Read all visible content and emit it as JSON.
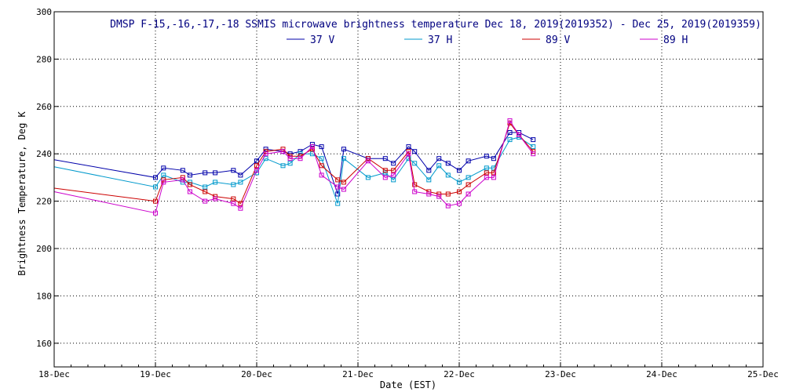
{
  "chart_data": {
    "type": "line",
    "title": "DMSP F-15,-16,-17,-18 SSMIS microwave brightness temperature Dec 18, 2019(2019352) - Dec 25, 2019(2019359)",
    "xlabel": "Date (EST)",
    "ylabel": "Brightness Temperature, Deg K",
    "xlim": [
      0,
      7
    ],
    "ylim": [
      150,
      300
    ],
    "yticks": [
      160,
      180,
      200,
      220,
      240,
      260,
      280,
      300
    ],
    "xticks": [
      {
        "value": 0,
        "label": "18-Dec"
      },
      {
        "value": 1,
        "label": "19-Dec"
      },
      {
        "value": 2,
        "label": "20-Dec"
      },
      {
        "value": 3,
        "label": "21-Dec"
      },
      {
        "value": 4,
        "label": "22-Dec"
      },
      {
        "value": 5,
        "label": "23-Dec"
      },
      {
        "value": 6,
        "label": "24-Dec"
      },
      {
        "value": 7,
        "label": "25-Dec"
      }
    ],
    "grid": true,
    "legend_position": "top-center",
    "series": [
      {
        "name": "37 V",
        "color": "#0000aa",
        "x": [
          0.0,
          1.0,
          1.08,
          1.27,
          1.34,
          1.49,
          1.59,
          1.77,
          1.84,
          2.0,
          2.09,
          2.26,
          2.33,
          2.43,
          2.55,
          2.64,
          2.8,
          2.86,
          3.1,
          3.27,
          3.35,
          3.5,
          3.56,
          3.7,
          3.8,
          3.89,
          4.0,
          4.09,
          4.27,
          4.34,
          4.5,
          4.59,
          4.73
        ],
        "y": [
          237.5,
          230,
          234,
          233,
          231,
          232,
          232,
          233,
          231,
          237,
          242,
          241,
          240,
          241,
          244,
          243,
          223,
          242,
          238,
          238,
          236,
          243,
          241,
          233,
          238,
          236,
          233,
          237,
          239,
          238,
          249,
          249,
          246
        ]
      },
      {
        "name": "37 H",
        "color": "#0099cc",
        "x": [
          0.0,
          1.0,
          1.08,
          1.27,
          1.34,
          1.49,
          1.59,
          1.77,
          1.84,
          2.0,
          2.09,
          2.26,
          2.33,
          2.43,
          2.55,
          2.64,
          2.8,
          2.86,
          3.1,
          3.27,
          3.35,
          3.5,
          3.56,
          3.7,
          3.8,
          3.89,
          4.0,
          4.09,
          4.27,
          4.34,
          4.5,
          4.59,
          4.73
        ],
        "y": [
          234.5,
          226,
          231,
          228,
          228,
          226,
          228,
          227,
          228,
          232,
          238,
          235,
          236,
          240,
          240,
          238,
          219,
          238,
          230,
          232,
          229,
          238,
          236,
          229,
          235,
          231,
          228,
          230,
          234,
          234,
          246,
          247,
          243
        ]
      },
      {
        "name": "89 V",
        "color": "#cc0000",
        "x": [
          0.0,
          1.0,
          1.08,
          1.27,
          1.34,
          1.49,
          1.59,
          1.77,
          1.84,
          2.0,
          2.09,
          2.26,
          2.33,
          2.43,
          2.55,
          2.64,
          2.8,
          2.86,
          3.1,
          3.27,
          3.35,
          3.5,
          3.56,
          3.7,
          3.8,
          3.89,
          4.0,
          4.09,
          4.27,
          4.34,
          4.5,
          4.59,
          4.73
        ],
        "y": [
          225.5,
          220,
          229,
          230,
          227,
          224,
          222,
          221,
          219,
          235,
          241,
          242,
          239,
          239,
          242,
          235,
          229,
          228,
          238,
          233,
          233,
          241,
          227,
          224,
          223,
          223,
          224,
          227,
          232,
          232,
          253,
          248,
          241
        ]
      },
      {
        "name": "89 H",
        "color": "#cc00cc",
        "x": [
          0.0,
          1.0,
          1.08,
          1.27,
          1.34,
          1.49,
          1.59,
          1.77,
          1.84,
          2.0,
          2.09,
          2.26,
          2.33,
          2.43,
          2.55,
          2.64,
          2.8,
          2.86,
          3.1,
          3.27,
          3.35,
          3.5,
          3.56,
          3.7,
          3.8,
          3.89,
          4.0,
          4.09,
          4.27,
          4.34,
          4.5,
          4.59,
          4.73
        ],
        "y": [
          224,
          215,
          228,
          229,
          224,
          220,
          221,
          219,
          217,
          233,
          240,
          241,
          238,
          238,
          243,
          231,
          226,
          225,
          237,
          230,
          231,
          240,
          224,
          223,
          222,
          218,
          219,
          223,
          230,
          230,
          254,
          248,
          240
        ]
      }
    ]
  }
}
